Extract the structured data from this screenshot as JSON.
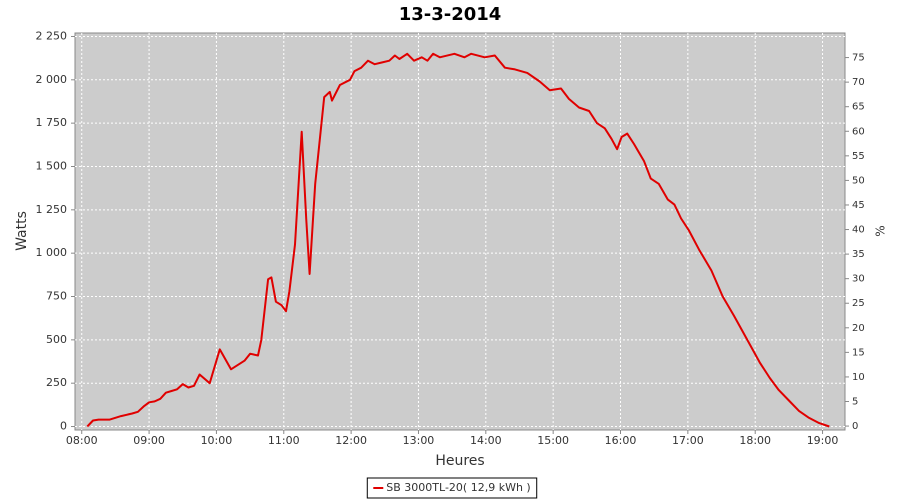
{
  "chart_data": {
    "type": "line",
    "title": "13-3-2014",
    "x_label": "Heures",
    "y_label": "Watts",
    "y2_label": "%",
    "x": [
      "08:05",
      "08:10",
      "08:15",
      "08:25",
      "08:35",
      "08:45",
      "08:50",
      "08:55",
      "09:00",
      "09:05",
      "09:10",
      "09:15",
      "09:20",
      "09:25",
      "09:30",
      "09:35",
      "09:40",
      "09:45",
      "09:54",
      "10:03",
      "10:13",
      "10:25",
      "10:30",
      "10:37",
      "10:40",
      "10:46",
      "10:49",
      "10:53",
      "10:58",
      "11:02",
      "11:05",
      "11:10",
      "11:16",
      "11:20",
      "11:23",
      "11:28",
      "11:32",
      "11:36",
      "11:41",
      "11:43",
      "11:50",
      "11:59",
      "12:03",
      "12:09",
      "12:15",
      "12:21",
      "12:34",
      "12:39",
      "12:43",
      "12:50",
      "12:56",
      "13:03",
      "13:08",
      "13:13",
      "13:19",
      "13:32",
      "13:41",
      "13:47",
      "13:59",
      "14:08",
      "14:17",
      "14:26",
      "14:37",
      "14:48",
      "14:57",
      "15:07",
      "15:14",
      "15:23",
      "15:32",
      "15:39",
      "15:46",
      "15:52",
      "15:57",
      "16:01",
      "16:06",
      "16:12",
      "16:21",
      "16:27",
      "16:34",
      "16:42",
      "16:48",
      "16:54",
      "17:01",
      "17:10",
      "17:21",
      "17:31",
      "17:41",
      "17:53",
      "18:04",
      "18:13",
      "18:21",
      "18:30",
      "18:39",
      "18:48",
      "18:57",
      "19:06"
    ],
    "series": [
      {
        "name": "SB 3000TL-20( 12,9 kWh )",
        "color": "#e00000",
        "values": [
          0,
          35,
          40,
          40,
          60,
          75,
          85,
          115,
          140,
          145,
          160,
          195,
          205,
          215,
          245,
          225,
          235,
          300,
          250,
          445,
          330,
          380,
          420,
          410,
          500,
          850,
          860,
          720,
          700,
          665,
          780,
          1050,
          1700,
          1200,
          880,
          1400,
          1650,
          1900,
          1930,
          1880,
          1970,
          2000,
          2050,
          2070,
          2110,
          2090,
          2110,
          2140,
          2120,
          2150,
          2110,
          2130,
          2110,
          2150,
          2130,
          2150,
          2130,
          2150,
          2130,
          2140,
          2070,
          2060,
          2040,
          1990,
          1940,
          1950,
          1890,
          1840,
          1820,
          1750,
          1720,
          1660,
          1600,
          1670,
          1690,
          1630,
          1530,
          1430,
          1400,
          1310,
          1280,
          1200,
          1130,
          1020,
          900,
          750,
          640,
          500,
          370,
          280,
          210,
          150,
          90,
          50,
          20,
          0
        ]
      }
    ],
    "xlim": [
      "07:54",
      "19:20"
    ],
    "xticks": [
      "08:00",
      "09:00",
      "10:00",
      "11:00",
      "12:00",
      "13:00",
      "14:00",
      "15:00",
      "16:00",
      "17:00",
      "18:00",
      "19:00"
    ],
    "ylim": [
      -20,
      2270
    ],
    "yticks": [
      0,
      250,
      500,
      750,
      {
        "value": 1000,
        "label": "1 000"
      },
      {
        "value": 1250,
        "label": "1 250"
      },
      {
        "value": 1500,
        "label": "1 500"
      },
      {
        "value": 1750,
        "label": "1 750"
      },
      {
        "value": 2000,
        "label": "2 000"
      },
      {
        "value": 2250,
        "label": "2 250"
      }
    ],
    "y2lim": [
      -0.8,
      80
    ],
    "y2ticks": [
      0,
      5,
      10,
      15,
      20,
      25,
      30,
      35,
      40,
      45,
      50,
      55,
      60,
      65,
      70,
      75
    ],
    "grid": true,
    "background": "#cccccc"
  }
}
